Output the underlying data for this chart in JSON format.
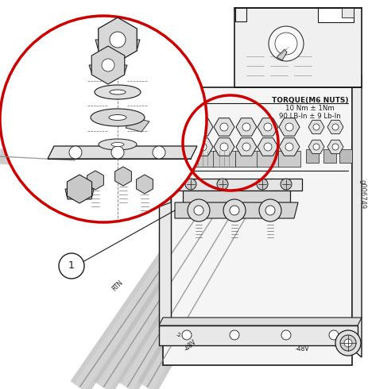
{
  "figure_width": 4.64,
  "figure_height": 4.9,
  "dpi": 100,
  "bg_color": "#ffffff",
  "line_color": "#1a1a1a",
  "red_color": "#cc0000",
  "torque_lines": [
    "TORQUE(M6 NUTS)",
    "10 Nm ± 1Nm",
    "90 LB-In ± 9 Lb-In"
  ],
  "callout_num": "1",
  "watermark": "g006749",
  "rtn_label": "RTN",
  "neg48v_label": "-48V"
}
